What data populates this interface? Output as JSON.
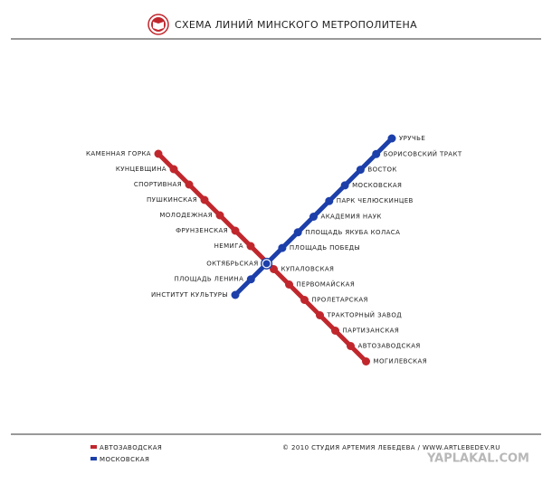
{
  "header": {
    "title": "СХЕМА ЛИНИЙ МИНСКОГО МЕТРОПОЛИТЕНА"
  },
  "lines": [
    {
      "name": "АВТОЗАВОДСКАЯ",
      "color": "#c0272d",
      "stations": [
        "КАМЕННАЯ ГОРКА",
        "КУНЦЕВЩИНА",
        "СПОРТИВНАЯ",
        "ПУШКИНСКАЯ",
        "МОЛОДЕЖНАЯ",
        "ФРУНЗЕНСКАЯ",
        "НЕМИГА",
        "КУПАЛОВСКАЯ",
        "ПЕРВОМАЙСКАЯ",
        "ПРОЛЕТАРСКАЯ",
        "ТРАКТОРНЫЙ ЗАВОД",
        "ПАРТИЗАНСКАЯ",
        "АВТОЗАВОДСКАЯ",
        "МОГИЛЕВСКАЯ"
      ]
    },
    {
      "name": "МОСКОВСКАЯ",
      "color": "#1c3faa",
      "stations": [
        "УРУЧЬЕ",
        "БОРИСОВСКИЙ ТРАКТ",
        "ВОСТОК",
        "МОСКОВСКАЯ",
        "ПАРК ЧЕЛЮСКИНЦЕВ",
        "АКАДЕМИЯ НАУК",
        "ПЛОЩАДЬ ЯКУБА КОЛАСА",
        "ПЛОЩАДЬ ПОБЕДЫ",
        "ОКТЯБРЬСКАЯ",
        "ПЛОЩАДЬ ЛЕНИНА",
        "ИНСТИТУТ КУЛЬТУРЫ"
      ]
    }
  ],
  "footer": {
    "copyright": "© 2010  СТУДИЯ АРТЕМИЯ ЛЕБЕДЕВА  /  WWW.ARTLEBEDEV.RU",
    "watermark": "YAPLAKAL.COM"
  }
}
